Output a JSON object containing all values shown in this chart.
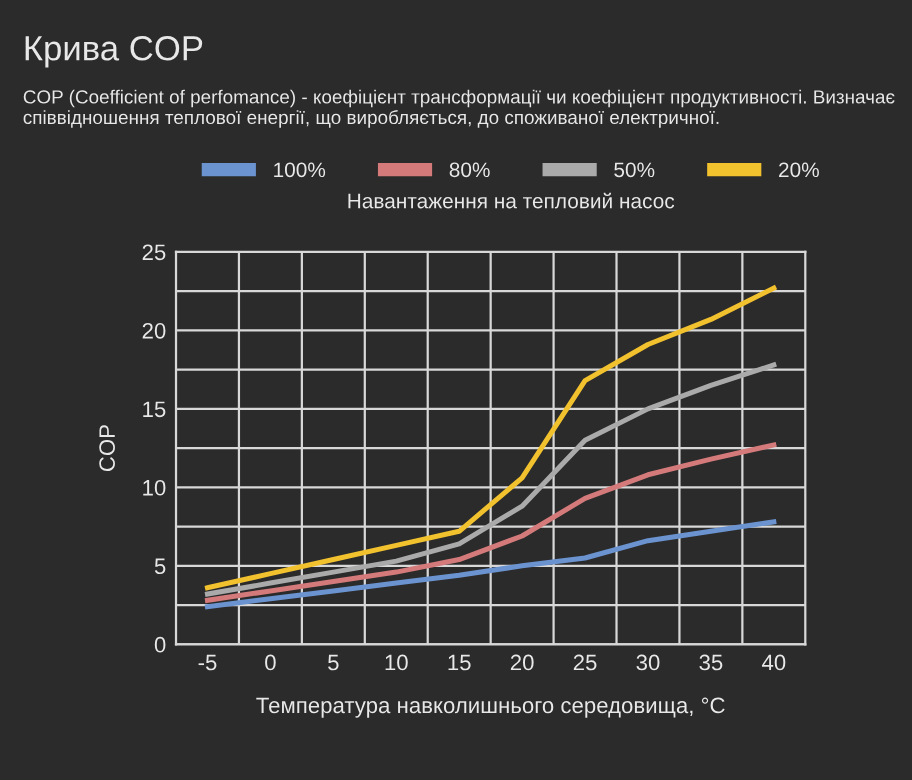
{
  "chart_data": {
    "type": "line",
    "title": "Крива COP",
    "subtitle": "COP (Coefficient of perfomance) - коефіцієнт трансформації чи коефіцієнт продуктивності. Визначає співвідношення теплової енергії, що виробляється, до споживаної електричної.",
    "xlabel": "Температура навколишнього середовища, °C",
    "ylabel": "COP",
    "legend_title": "Навантаження на тепловий насос",
    "categories": [
      "-5",
      "0",
      "5",
      "10",
      "15",
      "20",
      "25",
      "30",
      "35",
      "40"
    ],
    "series": [
      {
        "name": "100%",
        "color": "#6a93d0",
        "values": [
          2.4,
          2.9,
          3.4,
          3.9,
          4.4,
          5.0,
          5.5,
          6.6,
          7.2,
          7.8
        ]
      },
      {
        "name": "80%",
        "color": "#d47a7a",
        "values": [
          2.8,
          3.4,
          4.0,
          4.6,
          5.4,
          6.9,
          9.3,
          10.8,
          11.8,
          12.7
        ]
      },
      {
        "name": "50%",
        "color": "#aaaaaa",
        "values": [
          3.2,
          3.9,
          4.6,
          5.3,
          6.4,
          8.8,
          13.0,
          15.0,
          16.5,
          17.8
        ]
      },
      {
        "name": "20%",
        "color": "#f2c12e",
        "values": [
          3.6,
          4.5,
          5.4,
          6.3,
          7.2,
          10.6,
          16.8,
          19.1,
          20.7,
          22.7
        ]
      }
    ],
    "ylim": [
      0,
      25
    ],
    "yticks": [
      0,
      {
        "value": 2.5,
        "label": null
      },
      5,
      {
        "value": 7.5,
        "label": null
      },
      10,
      {
        "value": 12.5,
        "label": null
      },
      15,
      {
        "value": 17.5,
        "label": null
      },
      20,
      {
        "value": 22.5,
        "label": null
      },
      25
    ],
    "grid": true,
    "legend": "top",
    "marker": "none",
    "line_style": "solid"
  }
}
